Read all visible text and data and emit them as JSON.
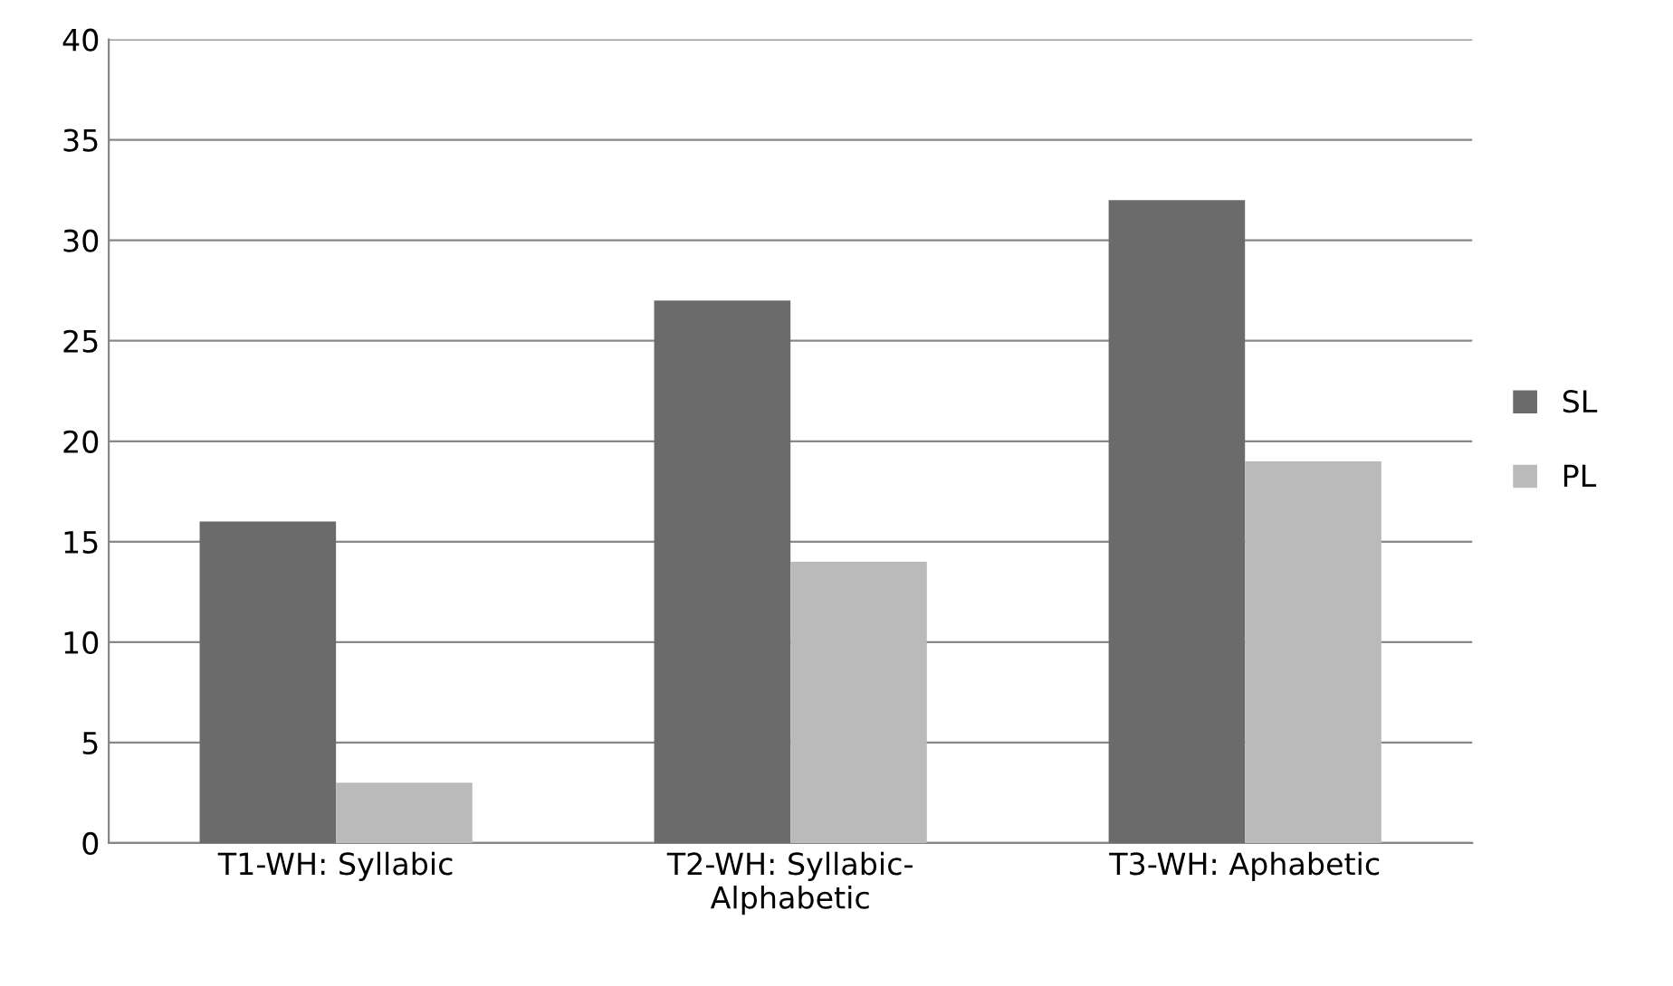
{
  "chart_data": {
    "type": "bar",
    "categories": [
      "T1-WH: Syllabic",
      "T2-WH: Syllabic-\nAlphabetic",
      "T3-WH: Aphabetic"
    ],
    "series": [
      {
        "name": "SL",
        "color": "#6b6b6b",
        "values": [
          16,
          27,
          32
        ]
      },
      {
        "name": "PL",
        "color": "#bababa",
        "values": [
          3,
          14,
          19
        ]
      }
    ],
    "ylim": [
      0,
      40
    ],
    "yticks": [
      0,
      5,
      10,
      15,
      20,
      25,
      30,
      35,
      40
    ],
    "grid": "y",
    "legend": "right"
  }
}
